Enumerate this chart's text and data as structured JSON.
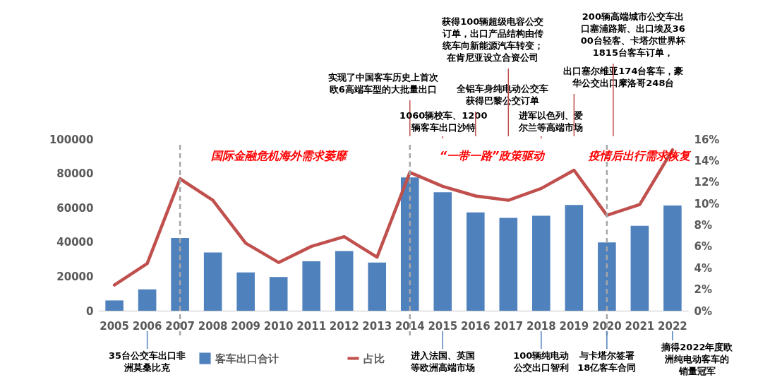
{
  "chart_data": {
    "type": "bar",
    "categories": [
      "2005",
      "2006",
      "2007",
      "2008",
      "2009",
      "2010",
      "2011",
      "2012",
      "2013",
      "2014",
      "2015",
      "2016",
      "2017",
      "2018",
      "2019",
      "2020",
      "2021",
      "2022"
    ],
    "series": [
      {
        "name": "客车出口合计",
        "type": "bar",
        "color": "#4f81bd",
        "values": [
          6000,
          12500,
          42400,
          34000,
          22300,
          19600,
          28800,
          34800,
          28100,
          77700,
          69000,
          57300,
          54100,
          55300,
          61600,
          39800,
          49500,
          61300
        ]
      },
      {
        "name": "占比",
        "type": "line",
        "axis": "y2",
        "color": "#c0504d",
        "values": [
          2.4,
          4.4,
          12.3,
          10.3,
          6.3,
          4.5,
          6.0,
          6.9,
          5.0,
          12.9,
          11.6,
          10.7,
          10.3,
          11.4,
          13.1,
          8.9,
          9.9,
          15.0
        ]
      }
    ],
    "ylim": [
      0,
      100000
    ],
    "yticks": [
      0,
      20000,
      40000,
      60000,
      80000,
      100000
    ],
    "y2lim": [
      0,
      16
    ],
    "y2ticks": [
      {
        "value": 0,
        "label": "0%"
      },
      {
        "value": 2,
        "label": "2%"
      },
      {
        "value": 4,
        "label": "4%"
      },
      {
        "value": 6,
        "label": "6%"
      },
      {
        "value": 8,
        "label": "8%"
      },
      {
        "value": 10,
        "label": "10%"
      },
      {
        "value": 12,
        "label": "12%"
      },
      {
        "value": 14,
        "label": "14%"
      },
      {
        "value": 16,
        "label": "16%"
      }
    ],
    "legend": "bottom",
    "ref_lines": [
      {
        "axis": "x",
        "value": "2007",
        "label": "国际金融危机海外需求萎靡",
        "color": "#a6a6a6",
        "line_style": "dashed"
      },
      {
        "axis": "x",
        "value": "2014",
        "label": "“一带一路”政策驱动",
        "color": "#a6a6a6",
        "line_style": "dashed"
      },
      {
        "axis": "x",
        "value": "2020",
        "label": "疫情后出行需求恢复",
        "color": "#a6a6a6",
        "line_style": "dashed"
      }
    ],
    "annotations": [
      "实现了中国客车历史上首次欧6高端车型的大批量出口",
      "1060辆校车、1200辆客车出口沙特",
      "全铝车身纯电动公交车获得巴黎公交订单",
      "获得100辆超级电容公交订单，出口产品结构由传统车向新能源汽车转变；在肯尼亚设立合资公司",
      "进军以色列、爱尔兰等高端市场",
      "出口塞尔维亚174台客车，豪华公交出口摩洛哥248台",
      "200辆高端城市公交车出口塞浦路斯、出口埃及3600台轻客、卡塔尔世界杯1815台客车订单，",
      "35台公交车出口非洲莫桑比克",
      "进入法国、英国等欧洲高端市场",
      "100辆纯电动公交出口智利",
      "与卡塔尔签署18亿客车合同",
      "摘得2022年度欧洲纯电动客车的销量冠军"
    ]
  }
}
